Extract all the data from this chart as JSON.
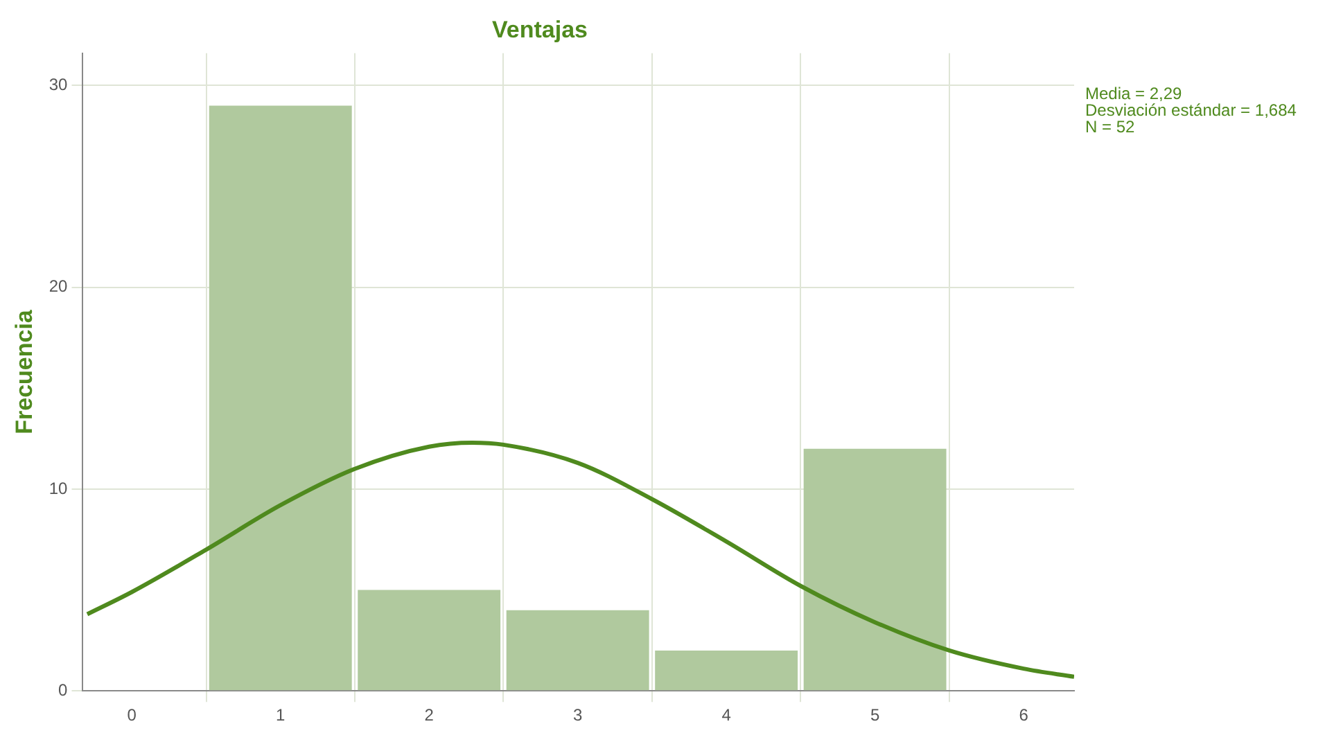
{
  "chart_data": {
    "type": "histogram",
    "title": "Ventajas",
    "ylabel": "Frecuencia",
    "bins": [
      0.5,
      1.5,
      2.5,
      3.5,
      4.5,
      5.5
    ],
    "values": [
      29,
      5,
      4,
      2,
      12
    ],
    "color": "#b0c99e",
    "series": [
      {
        "type": "line",
        "color": "#4f8a1e",
        "x": [
          -0.3,
          0,
          0.5,
          1,
          1.5,
          2,
          2.29,
          2.5,
          3,
          3.5,
          4,
          4.5,
          5,
          5.5,
          6,
          6.34
        ],
        "values": [
          3.8,
          4.9,
          7.0,
          9.2,
          11.0,
          12.1,
          12.3,
          12.2,
          11.3,
          9.5,
          7.4,
          5.2,
          3.4,
          2.0,
          1.1,
          0.7
        ]
      }
    ],
    "xlim": [
      -0.33,
      6.34
    ],
    "xticks": [
      0,
      1,
      2,
      3,
      4,
      5,
      6
    ],
    "ylim": [
      0,
      31.6
    ],
    "yticks": [
      0,
      10,
      20,
      30
    ],
    "grid": true,
    "annotations": [
      "Media = 2,29",
      "Desviación estándar = 1,684",
      "N = 52"
    ]
  }
}
